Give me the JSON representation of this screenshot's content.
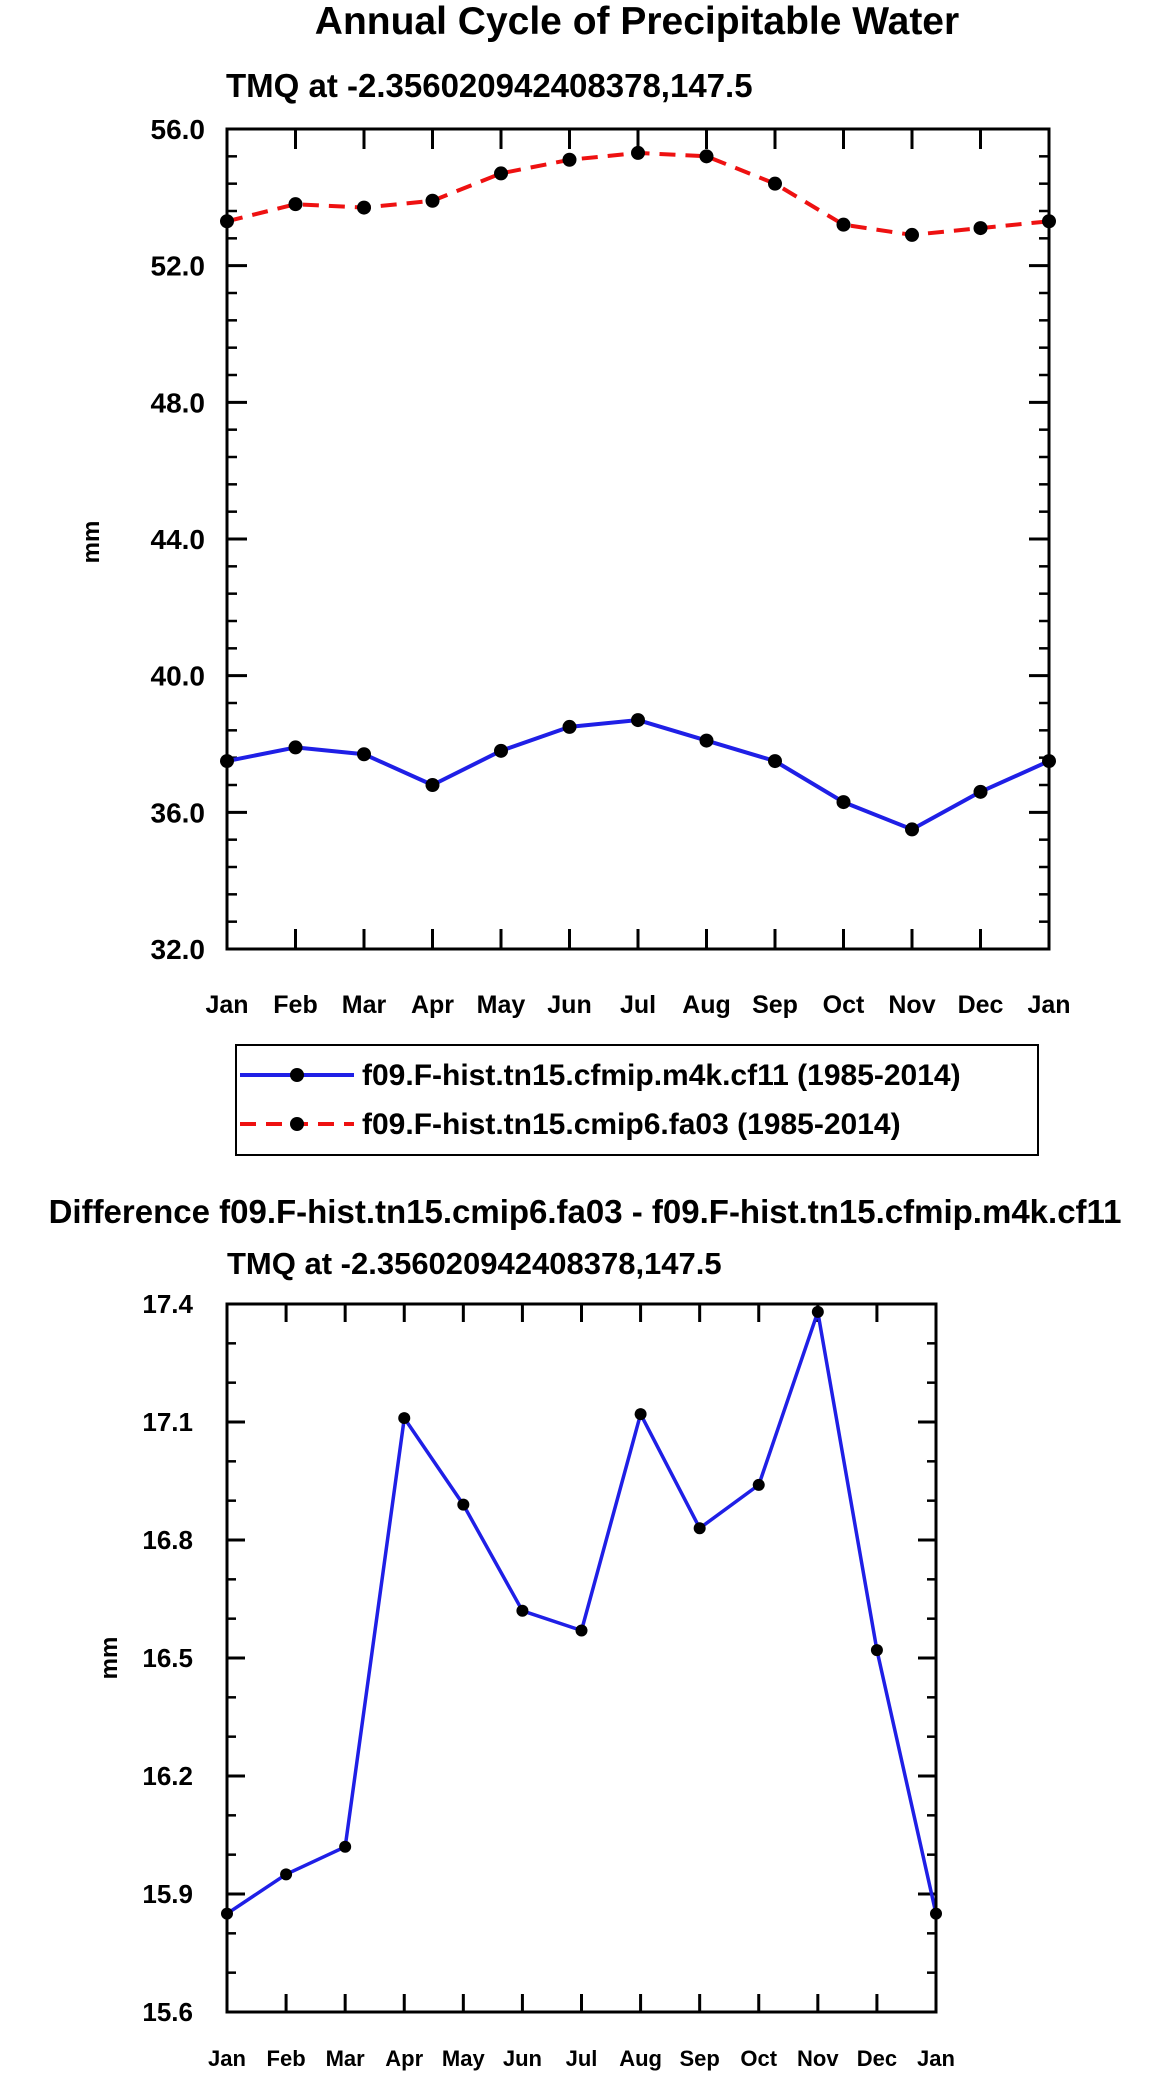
{
  "chart_data": [
    {
      "type": "line",
      "title": "Annual Cycle of Precipitable Water",
      "subtitle": "TMQ at -2.356020942408378,147.5",
      "xlabel": "",
      "ylabel": "mm",
      "categories": [
        "Jan",
        "Feb",
        "Mar",
        "Apr",
        "May",
        "Jun",
        "Jul",
        "Aug",
        "Sep",
        "Oct",
        "Nov",
        "Dec",
        "Jan"
      ],
      "ylim": [
        32.0,
        56.0
      ],
      "yticks": [
        "32.0",
        "36.0",
        "40.0",
        "44.0",
        "48.0",
        "52.0",
        "56.0"
      ],
      "series": [
        {
          "name": "f09.F-hist.tn15.cfmip.m4k.cf11 (1985-2014)",
          "color": "#1f1fe6",
          "dash": "solid",
          "values": [
            37.5,
            37.9,
            37.7,
            36.8,
            37.8,
            38.5,
            38.7,
            38.1,
            37.5,
            36.3,
            35.5,
            36.6,
            37.5
          ]
        },
        {
          "name": "f09.F-hist.tn15.cmip6.fa03 (1985-2014)",
          "color": "#ee1111",
          "dash": "dashed",
          "values": [
            53.3,
            53.8,
            53.7,
            53.9,
            54.7,
            55.1,
            55.3,
            55.2,
            54.4,
            53.2,
            52.9,
            53.1,
            53.3
          ]
        }
      ],
      "legend": "bottom"
    },
    {
      "type": "line",
      "title": "Difference f09.F-hist.tn15.cmip6.fa03 - f09.F-hist.tn15.cfmip.m4k.cf11",
      "subtitle": "TMQ at -2.356020942408378,147.5",
      "xlabel": "",
      "ylabel": "mm",
      "categories": [
        "Jan",
        "Feb",
        "Mar",
        "Apr",
        "May",
        "Jun",
        "Jul",
        "Aug",
        "Sep",
        "Oct",
        "Nov",
        "Dec",
        "Jan"
      ],
      "ylim": [
        15.6,
        17.4
      ],
      "yticks": [
        "15.6",
        "15.9",
        "16.2",
        "16.5",
        "16.8",
        "17.1",
        "17.4"
      ],
      "series": [
        {
          "name": "difference",
          "color": "#1f1fe6",
          "dash": "solid",
          "values": [
            15.85,
            15.95,
            16.02,
            17.11,
            16.89,
            16.62,
            16.57,
            17.12,
            16.83,
            16.94,
            17.38,
            16.52,
            15.85
          ]
        }
      ]
    }
  ]
}
